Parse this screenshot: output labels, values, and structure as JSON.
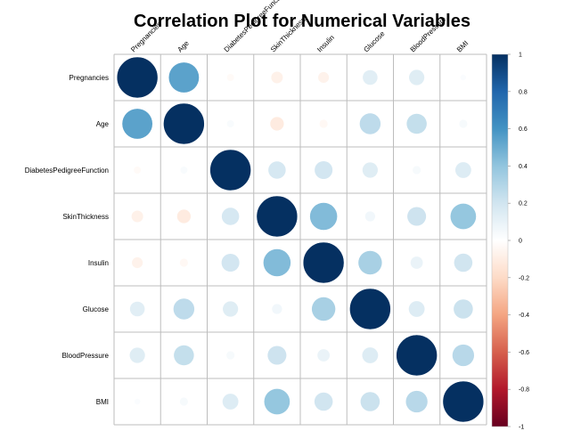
{
  "chart_data": {
    "type": "heatmap",
    "subtype": "correlation-circle-plot",
    "title": "Correlation Plot for Numerical Variables",
    "variables": [
      "Pregnancies",
      "Age",
      "DiabetesPedigreeFunction",
      "SkinThickness",
      "Insulin",
      "Glucose",
      "BloodPressure",
      "BMI"
    ],
    "column_labels": [
      "Pregnancies",
      "Age",
      "DiabetesPedigreeFunction",
      "SkinThickness",
      "Insulin",
      "Glucose",
      "BloodPressure",
      "BMI"
    ],
    "matrix": [
      [
        1.0,
        0.54,
        -0.03,
        -0.08,
        -0.07,
        0.13,
        0.14,
        0.02
      ],
      [
        0.54,
        1.0,
        0.03,
        -0.11,
        -0.04,
        0.26,
        0.24,
        0.04
      ],
      [
        -0.03,
        0.03,
        1.0,
        0.18,
        0.19,
        0.14,
        0.04,
        0.15
      ],
      [
        -0.08,
        -0.11,
        0.18,
        1.0,
        0.44,
        0.06,
        0.21,
        0.39
      ],
      [
        -0.07,
        -0.04,
        0.19,
        0.44,
        1.0,
        0.33,
        0.09,
        0.2
      ],
      [
        0.13,
        0.26,
        0.14,
        0.06,
        0.33,
        1.0,
        0.15,
        0.22
      ],
      [
        0.14,
        0.24,
        0.04,
        0.21,
        0.09,
        0.15,
        1.0,
        0.28
      ],
      [
        0.02,
        0.04,
        0.15,
        0.39,
        0.2,
        0.22,
        0.28,
        1.0
      ]
    ],
    "colorbar": {
      "range": [
        -1,
        1
      ],
      "ticks": [
        "1",
        "0.8",
        "0.6",
        "0.4",
        "0.2",
        "0",
        "-0.2",
        "-0.4",
        "-0.6",
        "-0.8",
        "-1"
      ],
      "colors": [
        "#67001F",
        "#B2182B",
        "#D6604D",
        "#F4A582",
        "#FDDBC7",
        "#FFFFFF",
        "#D1E5F0",
        "#92C5DE",
        "#4393C3",
        "#2166AC",
        "#053061"
      ]
    },
    "grid": true,
    "legend": "right"
  }
}
